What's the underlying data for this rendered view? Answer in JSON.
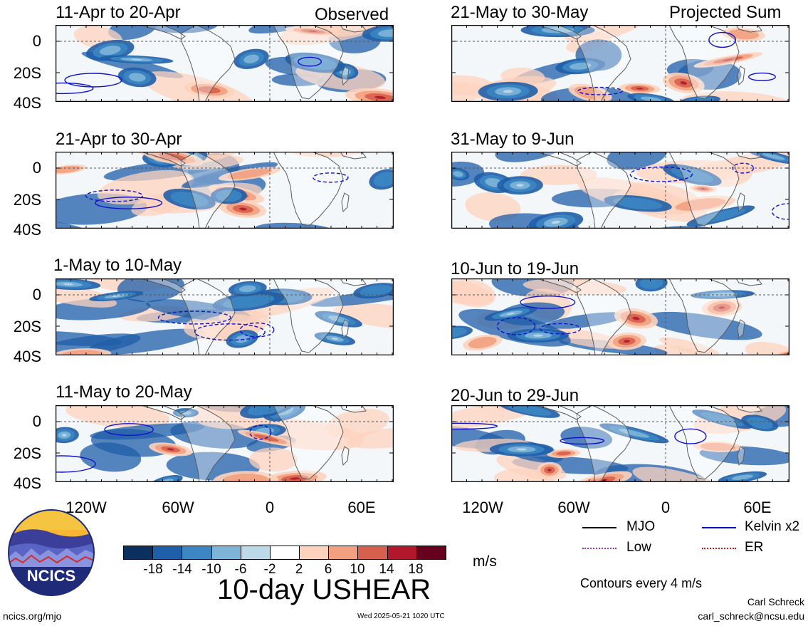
{
  "headers": {
    "left": "Observed",
    "right": "Projected Sum"
  },
  "panels": [
    {
      "title": "11-Apr to 20-Apr"
    },
    {
      "title": "21-Apr to 30-Apr"
    },
    {
      "title": "1-May to 10-May"
    },
    {
      "title": "11-May to 20-May"
    },
    {
      "title": "21-May to 30-May"
    },
    {
      "title": "31-May to 9-Jun"
    },
    {
      "title": "10-Jun to 19-Jun"
    },
    {
      "title": "20-Jun to 29-Jun"
    }
  ],
  "y_ticks": [
    "0",
    "20S",
    "40S"
  ],
  "x_ticks": [
    "120W",
    "60W",
    "0",
    "60E"
  ],
  "colorbar": {
    "ticks": [
      "-18",
      "-14",
      "-10",
      "-6",
      "-2",
      "2",
      "6",
      "10",
      "14",
      "18"
    ],
    "colors": [
      "#0b2f5f",
      "#1f5ea8",
      "#3b86c3",
      "#7eb4d8",
      "#bcd9ea",
      "#ffffff",
      "#fdd3bd",
      "#f3a080",
      "#d6604d",
      "#b2182b",
      "#67001f"
    ],
    "units": "m/s",
    "title": "10-day USHEAR"
  },
  "legend": {
    "items": [
      {
        "label": "MJO",
        "color": "#000000"
      },
      {
        "label": "Kelvin x2",
        "color": "#0000cc"
      },
      {
        "label": "Low",
        "color": "#9b30d0"
      },
      {
        "label": "ER",
        "color": "#dd1111"
      }
    ],
    "note": "Contours every 4 m/s"
  },
  "logo_text": "NCICS",
  "footer": {
    "url": "ncics.org/mjo",
    "timestamp": "Wed 2025-05-21 1020 UTC",
    "author": "Carl Schreck",
    "email": "carl_schreck@ncsu.edu"
  },
  "chart_data": {
    "type": "heatmap",
    "title": "10-day USHEAR",
    "units": "m/s",
    "x_axis": [
      "120W",
      "60W",
      "0",
      "60E"
    ],
    "y_axis": [
      "0",
      "20S",
      "40S"
    ],
    "color_levels": [
      -18,
      -14,
      -10,
      -6,
      -2,
      2,
      6,
      10,
      14,
      18
    ],
    "panels": [
      {
        "period": "11-Apr to 20-Apr",
        "group": "Observed"
      },
      {
        "period": "21-Apr to 30-Apr",
        "group": "Observed"
      },
      {
        "period": "1-May to 10-May",
        "group": "Observed"
      },
      {
        "period": "11-May to 20-May",
        "group": "Observed"
      },
      {
        "period": "21-May to 30-May",
        "group": "Projected Sum"
      },
      {
        "period": "31-May to 9-Jun",
        "group": "Projected Sum"
      },
      {
        "period": "10-Jun to 19-Jun",
        "group": "Projected Sum"
      },
      {
        "period": "20-Jun to 29-Jun",
        "group": "Projected Sum"
      }
    ],
    "contour_interval": "Contours every 4 m/s",
    "contour_series": [
      "MJO",
      "Kelvin x2",
      "Low",
      "ER"
    ]
  }
}
